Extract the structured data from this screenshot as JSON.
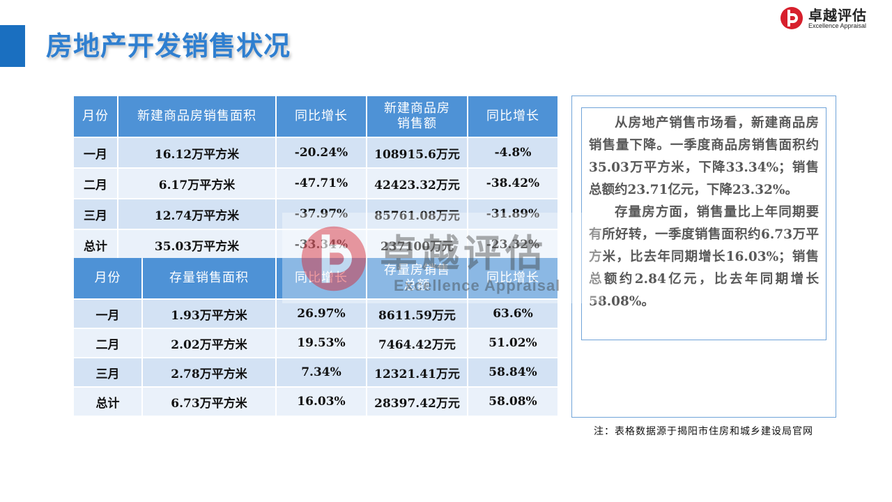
{
  "header": {
    "title": "房地产开发销售状况",
    "logo_cn": "卓越评估",
    "logo_en": "Excellence Appraisal",
    "brand_color": "#1a6fc0"
  },
  "table_new": {
    "headers": [
      "月份",
      "新建商品房销售面积",
      "同比增长",
      "新建商品房\n销售额",
      "同比增长"
    ],
    "rows": [
      [
        "一月",
        "16.12万平方米",
        "-20.24%",
        "108915.6万元",
        "-4.8%"
      ],
      [
        "二月",
        "6.17万平方米",
        "-47.71%",
        "42423.32万元",
        "-38.42%"
      ],
      [
        "三月",
        "12.74万平方米",
        "-37.97%",
        "85761.08万元",
        "-31.89%"
      ],
      [
        "总计",
        "35.03万平方米",
        "-33.34%",
        "237100万元",
        "-23.32%"
      ]
    ]
  },
  "table_stock": {
    "headers": [
      "月份",
      "存量销售面积",
      "同比增长",
      "存量房销售\n总额",
      "同比增长"
    ],
    "rows": [
      [
        "一月",
        "1.93万平方米",
        "26.97%",
        "8611.59万元",
        "63.6%"
      ],
      [
        "二月",
        "2.02万平方米",
        "19.53%",
        "7464.42万元",
        "51.02%"
      ],
      [
        "三月",
        "2.78万平方米",
        "7.34%",
        "12321.41万元",
        "58.84%"
      ],
      [
        "总计",
        "6.73万平方米",
        "16.03%",
        "28397.42万元",
        "58.08%"
      ]
    ]
  },
  "summary": {
    "paragraph1": "从房地产销售市场看，新建商品房销售量下降。一季度商品房销售面积约35.03万平方米，下降33.34%；销售总额约23.71亿元，下降23.32%。",
    "paragraph2": "存量房方面，销售量比上年同期要有所好转，一季度销售面积约6.73万平方米，比去年同期增长16.03%；销售总额约2.84亿元，比去年同期增长58.08%。"
  },
  "note": "注：表格数据源于揭阳市住房和城乡建设局官网",
  "watermark": {
    "cn": "卓越评估",
    "en": "Excellence Appraisal"
  }
}
